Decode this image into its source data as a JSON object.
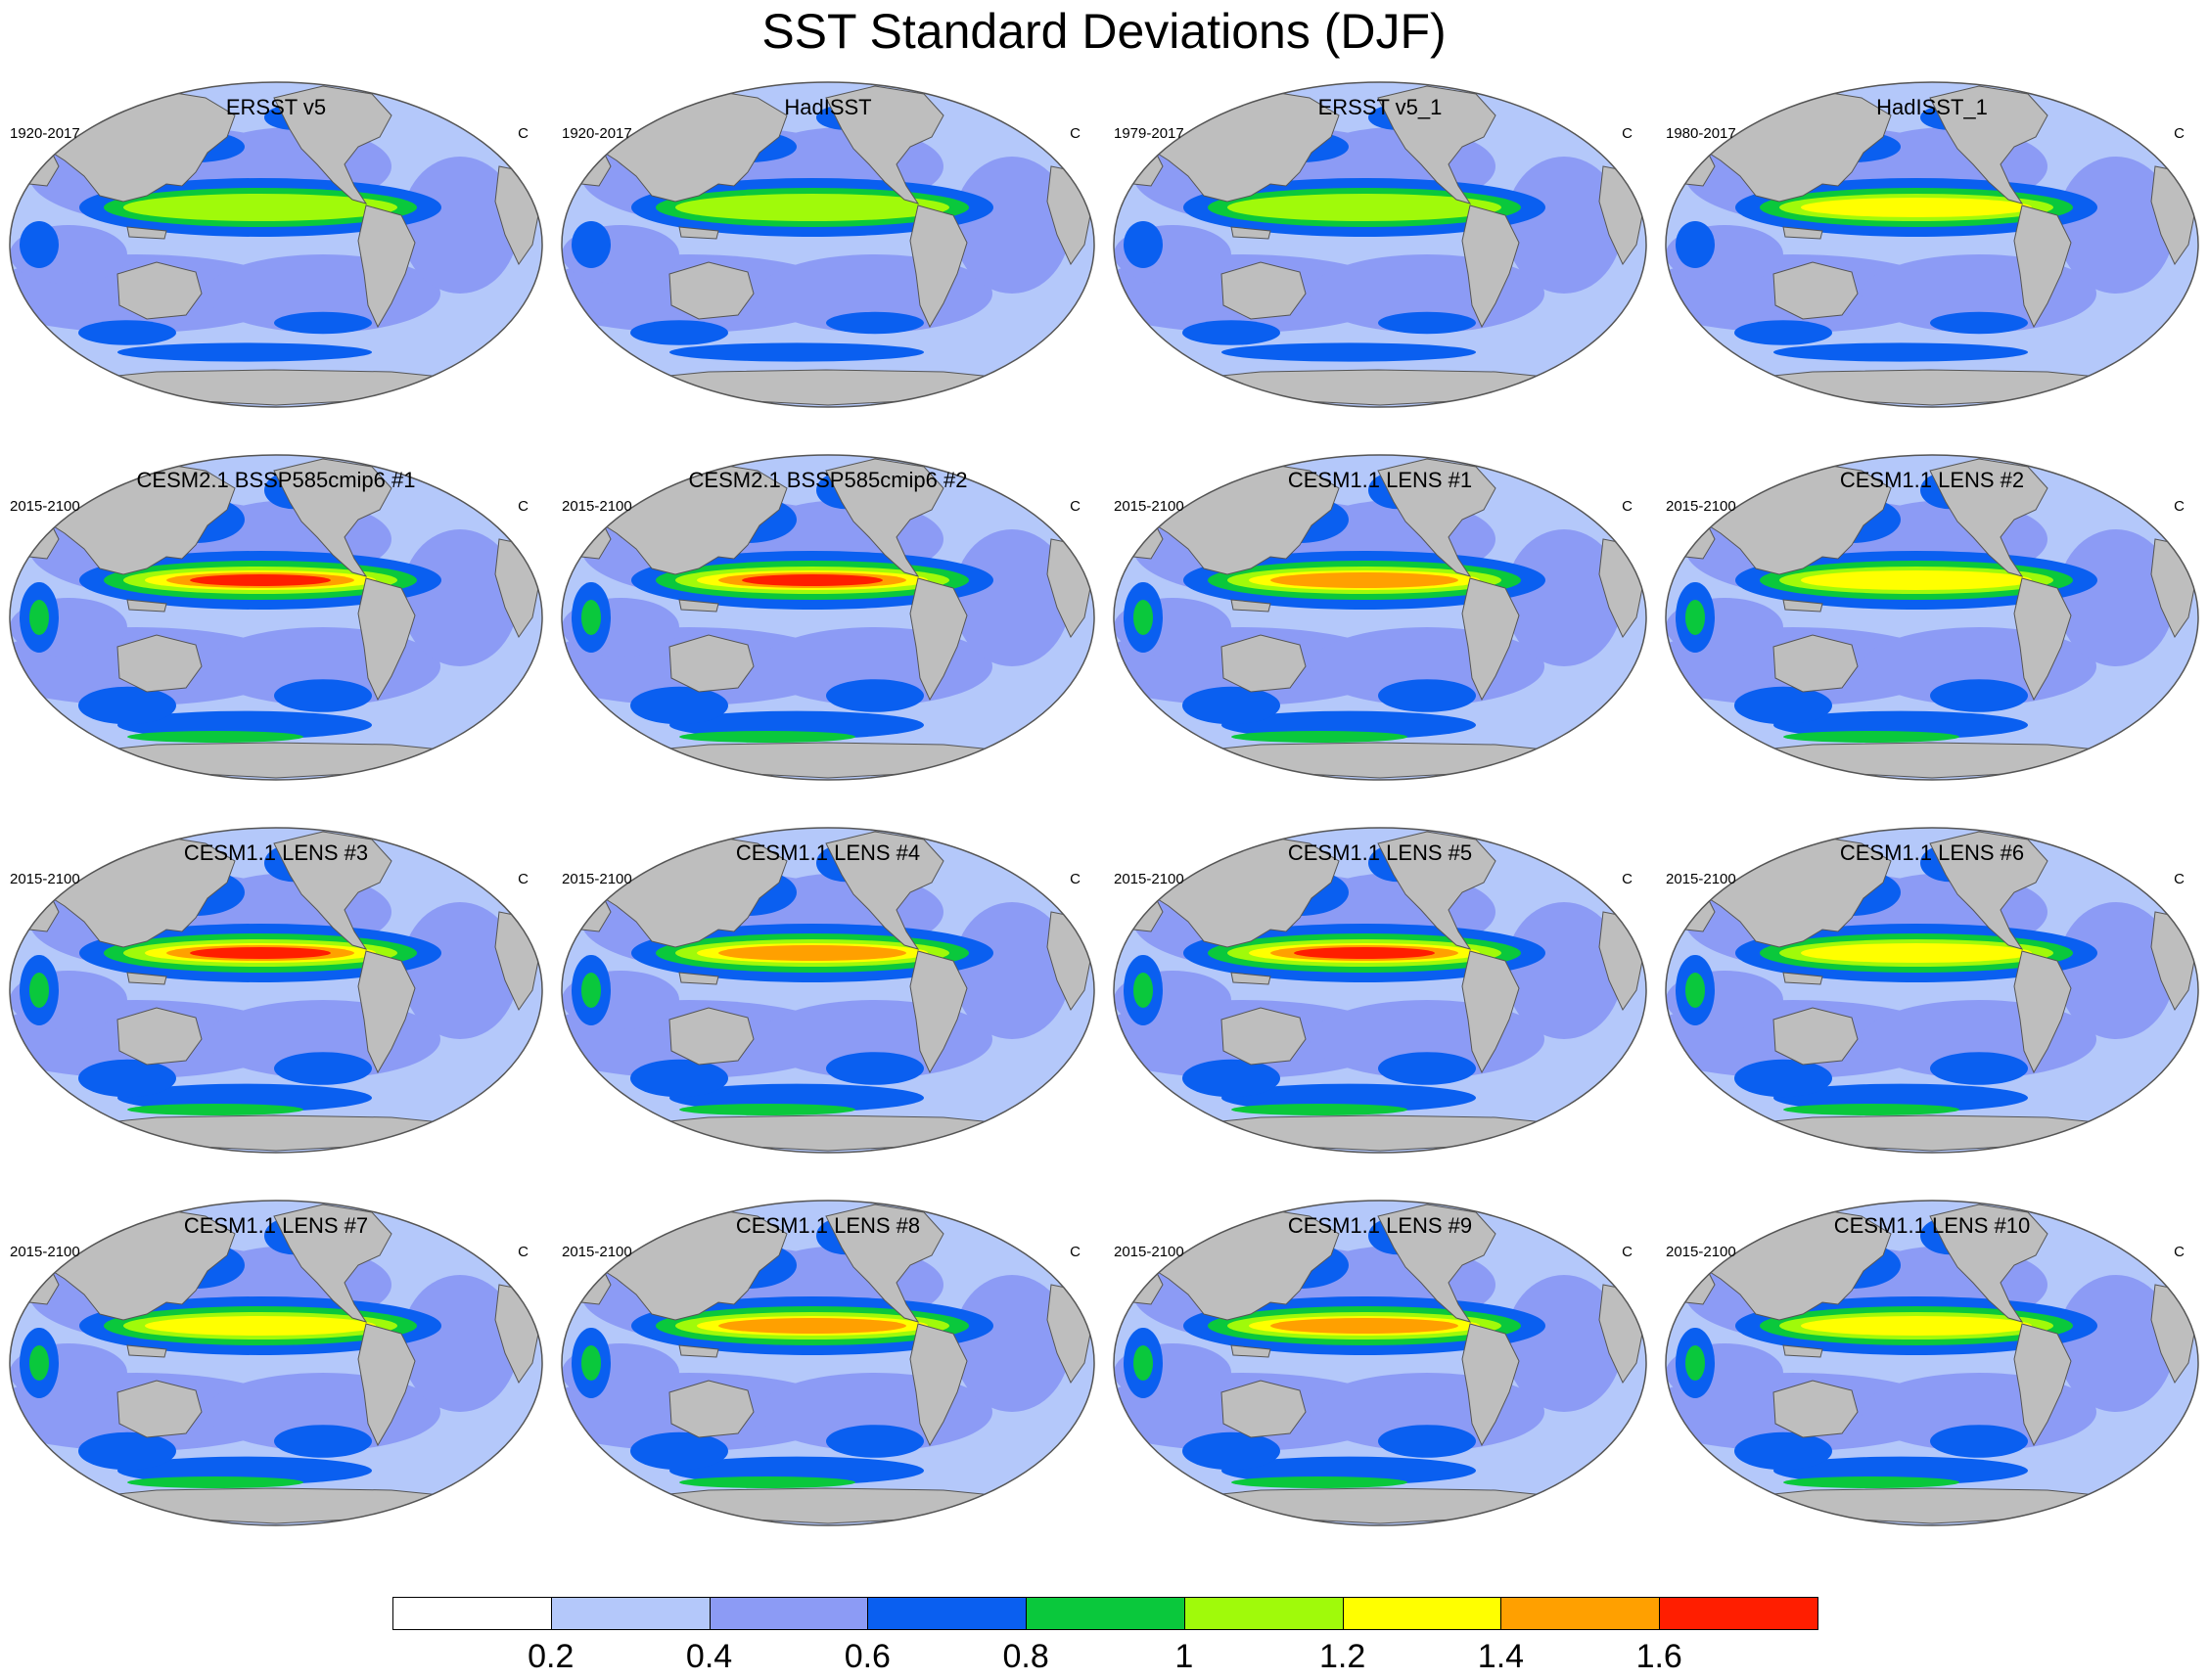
{
  "title": "SST Standard Deviations (DJF)",
  "panels": [
    {
      "title": "ERSST v5",
      "period": "1920-2017",
      "units": "C",
      "intensity": 1.05
    },
    {
      "title": "HadISST",
      "period": "1920-2017",
      "units": "C",
      "intensity": 1.1
    },
    {
      "title": "ERSST v5_1",
      "period": "1979-2017",
      "units": "C",
      "intensity": 1.2
    },
    {
      "title": "HadISST_1",
      "period": "1980-2017",
      "units": "C",
      "intensity": 1.3
    },
    {
      "title": "CESM2.1 BSSP585cmip6 #1",
      "period": "2015-2100",
      "units": "C",
      "intensity": 1.7
    },
    {
      "title": "CESM2.1 BSSP585cmip6 #2",
      "period": "2015-2100",
      "units": "C",
      "intensity": 1.7
    },
    {
      "title": "CESM1.1 LENS #1",
      "period": "2015-2100",
      "units": "C",
      "intensity": 1.6
    },
    {
      "title": "CESM1.1 LENS #2",
      "period": "2015-2100",
      "units": "C",
      "intensity": 1.5
    },
    {
      "title": "CESM1.1 LENS #3",
      "period": "2015-2100",
      "units": "C",
      "intensity": 1.7
    },
    {
      "title": "CESM1.1 LENS #4",
      "period": "2015-2100",
      "units": "C",
      "intensity": 1.6
    },
    {
      "title": "CESM1.1 LENS #5",
      "period": "2015-2100",
      "units": "C",
      "intensity": 1.7
    },
    {
      "title": "CESM1.1 LENS #6",
      "period": "2015-2100",
      "units": "C",
      "intensity": 1.5
    },
    {
      "title": "CESM1.1 LENS #7",
      "period": "2015-2100",
      "units": "C",
      "intensity": 1.5
    },
    {
      "title": "CESM1.1 LENS #8",
      "period": "2015-2100",
      "units": "C",
      "intensity": 1.6
    },
    {
      "title": "CESM1.1 LENS #9",
      "period": "2015-2100",
      "units": "C",
      "intensity": 1.6
    },
    {
      "title": "CESM1.1 LENS #10",
      "period": "2015-2100",
      "units": "C",
      "intensity": 1.5
    }
  ],
  "colorbar": {
    "colors": [
      "#ffffff",
      "#b4c8fa",
      "#8c9bf5",
      "#0a5ff0",
      "#0ac83c",
      "#a0fa0a",
      "#ffff00",
      "#ffa000",
      "#ff1e00"
    ],
    "labels": [
      "0.2",
      "0.4",
      "0.6",
      "0.8",
      "1",
      "1.2",
      "1.4",
      "1.6"
    ]
  },
  "land_color": "#bebebe"
}
